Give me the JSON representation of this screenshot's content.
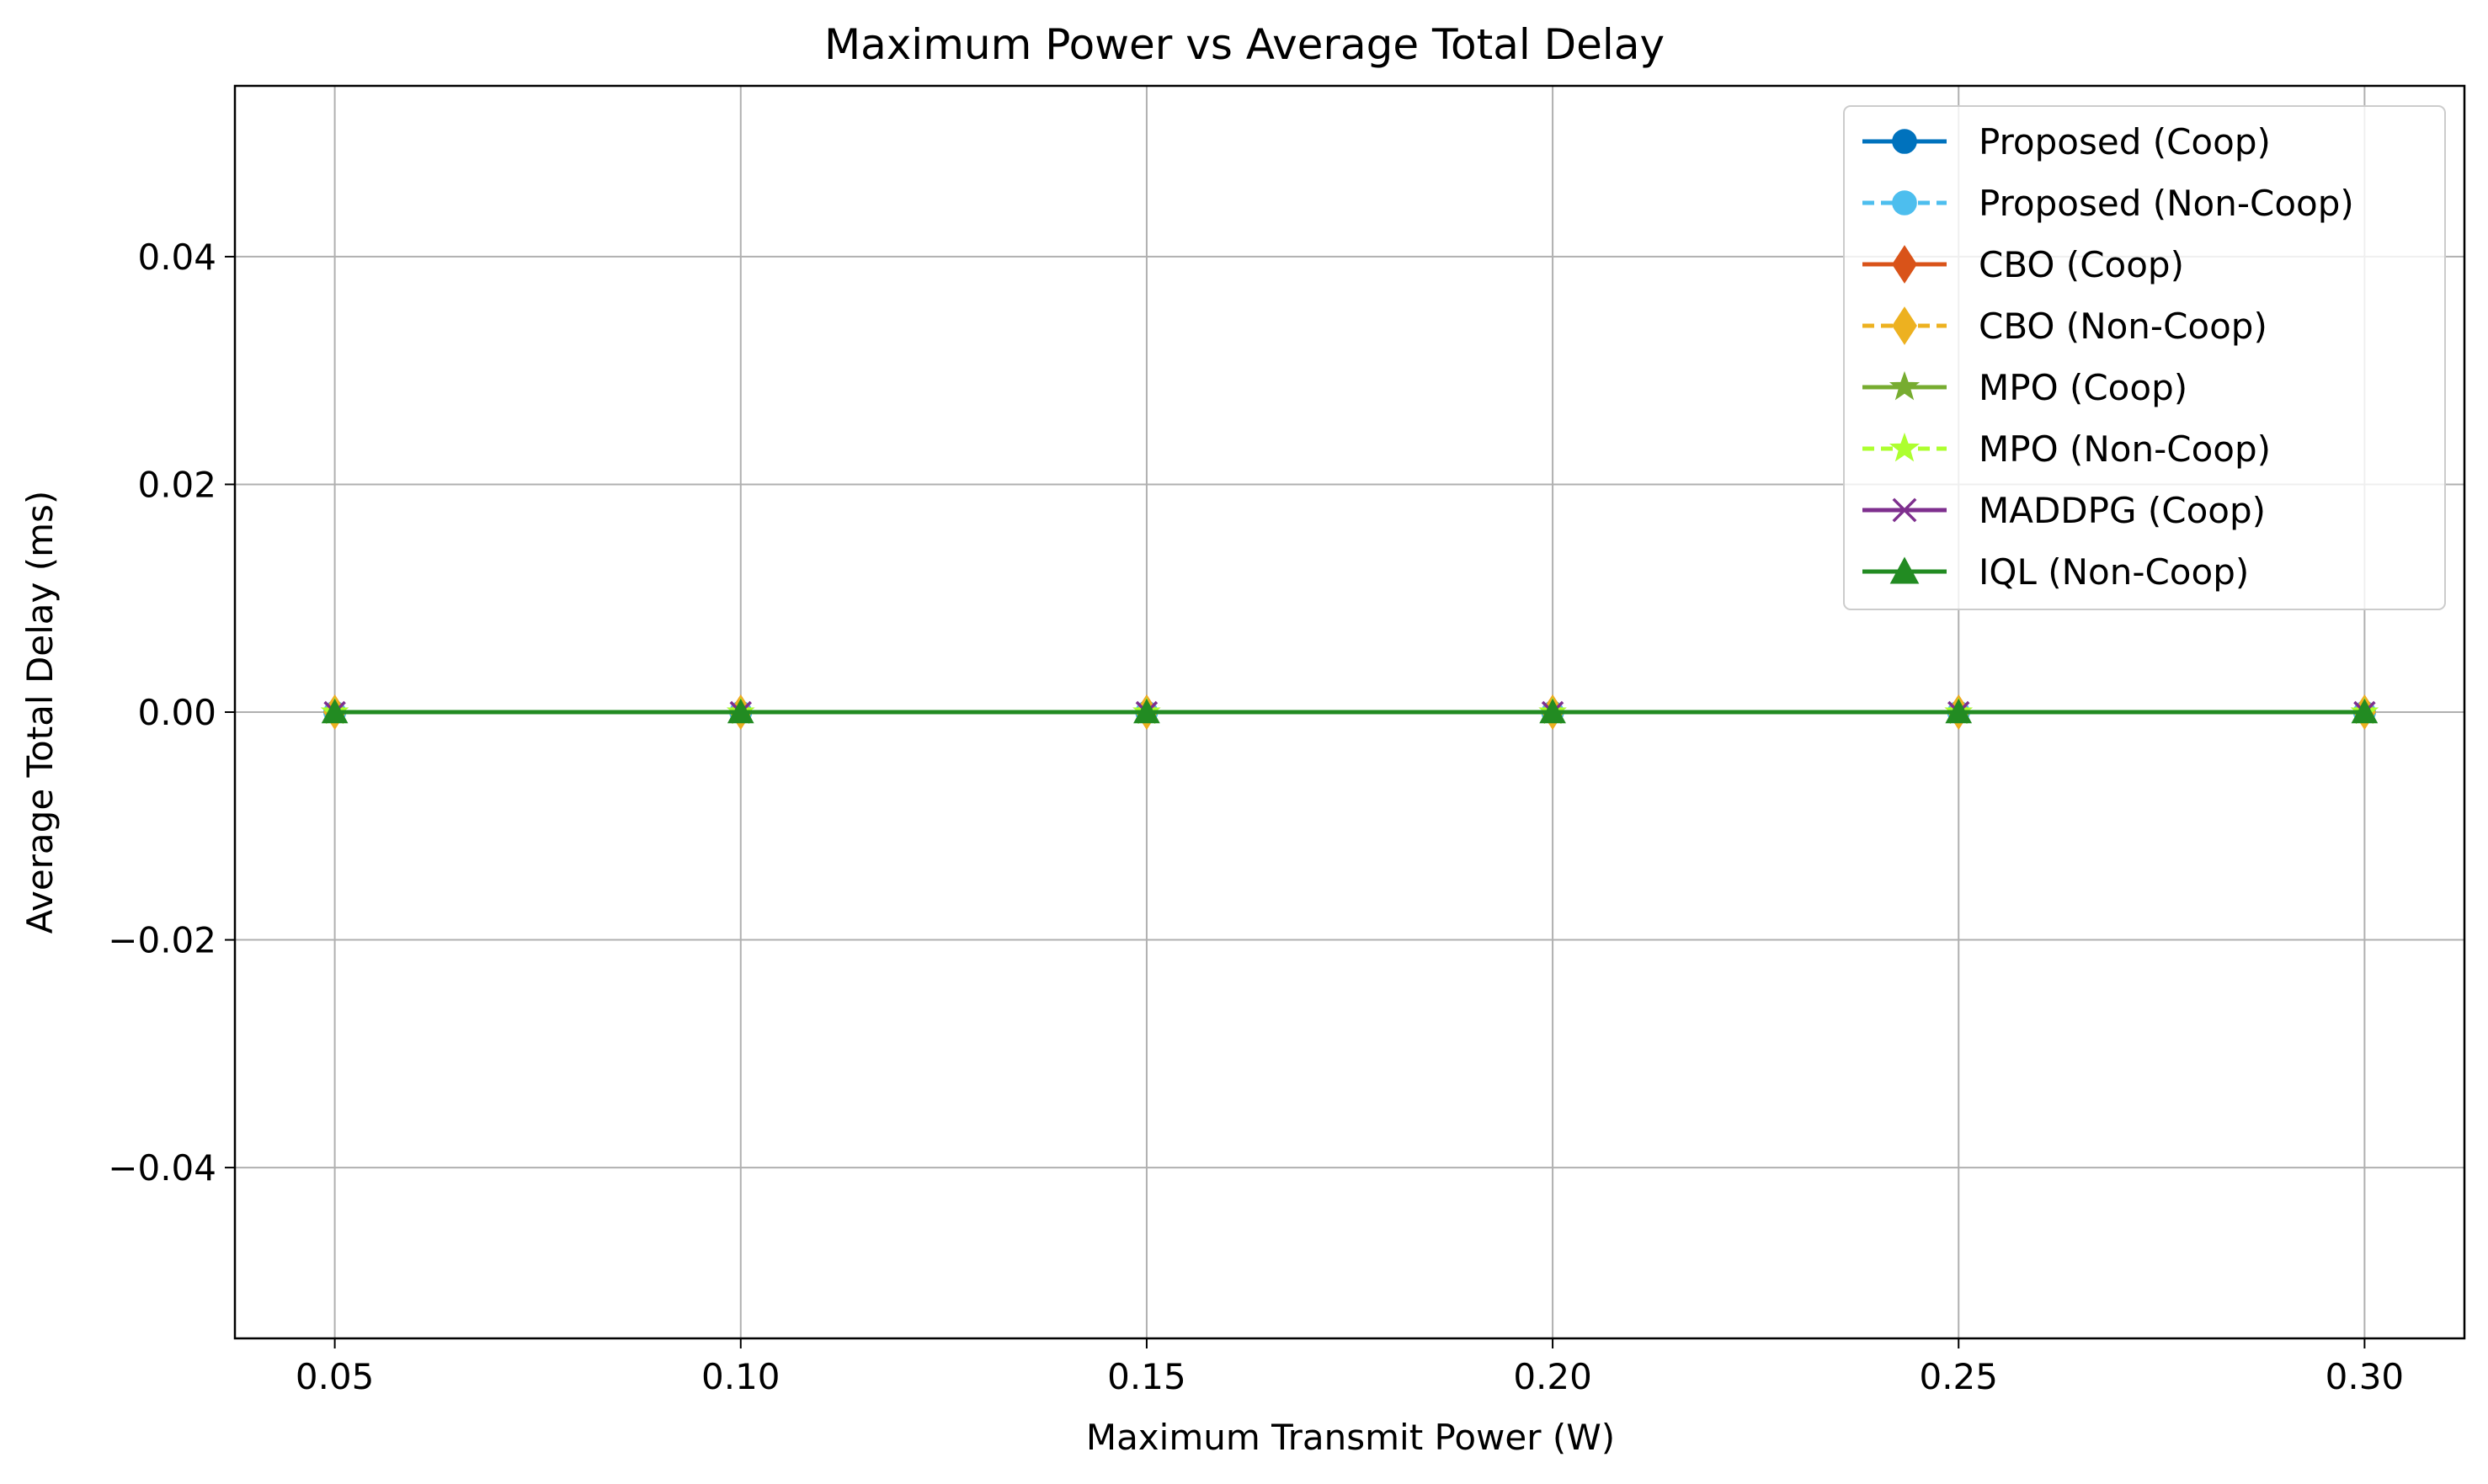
{
  "chart_data": {
    "type": "line",
    "title": "Maximum Power vs Average Total Delay",
    "xlabel": "Maximum Transmit Power (W)",
    "ylabel": "Average Total Delay (ms)",
    "x": [
      0.05,
      0.1,
      0.15,
      0.2,
      0.25,
      0.3
    ],
    "x_tick_labels": [
      "0.05",
      "0.10",
      "0.15",
      "0.20",
      "0.25",
      "0.30"
    ],
    "y_ticks": [
      -0.04,
      -0.02,
      0.0,
      0.02,
      0.04
    ],
    "y_tick_labels": [
      "−0.04",
      "−0.02",
      "0.00",
      "0.02",
      "0.04"
    ],
    "xlim": [
      0.0377,
      0.3123
    ],
    "ylim": [
      -0.055,
      0.055
    ],
    "grid": true,
    "legend_position": "top-right",
    "series": [
      {
        "name": "Proposed (Coop)",
        "values": [
          0,
          0,
          0,
          0,
          0,
          0
        ],
        "color": "#0072BD",
        "marker": "circle",
        "dash": "solid"
      },
      {
        "name": "Proposed (Non-Coop)",
        "values": [
          0,
          0,
          0,
          0,
          0,
          0
        ],
        "color": "#4DBEEE",
        "marker": "circle",
        "dash": "dashed"
      },
      {
        "name": "CBO (Coop)",
        "values": [
          0,
          0,
          0,
          0,
          0,
          0
        ],
        "color": "#D95319",
        "marker": "diamond",
        "dash": "solid"
      },
      {
        "name": "CBO (Non-Coop)",
        "values": [
          0,
          0,
          0,
          0,
          0,
          0
        ],
        "color": "#EDB120",
        "marker": "diamond",
        "dash": "dashed"
      },
      {
        "name": "MPO (Coop)",
        "values": [
          0,
          0,
          0,
          0,
          0,
          0
        ],
        "color": "#77AC30",
        "marker": "star",
        "dash": "solid"
      },
      {
        "name": "MPO (Non-Coop)",
        "values": [
          0,
          0,
          0,
          0,
          0,
          0
        ],
        "color": "#ADFF2F",
        "marker": "star",
        "dash": "dashed"
      },
      {
        "name": "MADDPG (Coop)",
        "values": [
          0,
          0,
          0,
          0,
          0,
          0
        ],
        "color": "#7E2F8E",
        "marker": "x",
        "dash": "solid"
      },
      {
        "name": "IQL (Non-Coop)",
        "values": [
          0,
          0,
          0,
          0,
          0,
          0
        ],
        "color": "#228B22",
        "marker": "triangle",
        "dash": "solid"
      }
    ]
  }
}
